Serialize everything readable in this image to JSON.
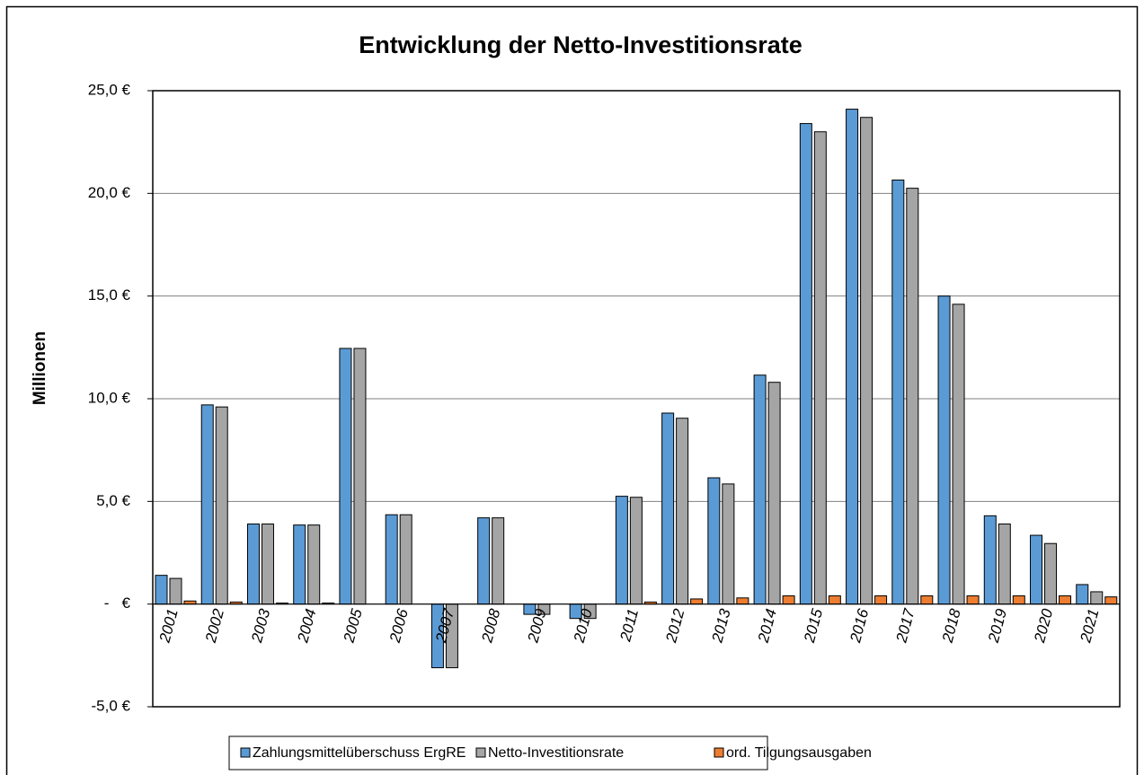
{
  "chart_data": {
    "type": "bar",
    "title": "Entwicklung der Netto-Investitionsrate",
    "y_label": "Millionen",
    "categories": [
      "2001",
      "2002",
      "2003",
      "2004",
      "2005",
      "2006",
      "2007",
      "2008",
      "2009",
      "2010",
      "2011",
      "2012",
      "2013",
      "2014",
      "2015",
      "2016",
      "2017",
      "2018",
      "2019",
      "2020",
      "2021"
    ],
    "series": [
      {
        "name": "Zahlungsmittelüberschuss ErgRE",
        "color": "#5b9bd5",
        "values": [
          1.4,
          9.7,
          3.9,
          3.85,
          12.45,
          4.35,
          -3.1,
          4.2,
          -0.5,
          -0.7,
          5.25,
          9.3,
          6.15,
          11.15,
          23.4,
          24.1,
          20.65,
          15.0,
          4.3,
          3.35,
          0.95
        ]
      },
      {
        "name": "Netto-Investitionsrate",
        "color": "#a5a5a5",
        "values": [
          1.25,
          9.6,
          3.9,
          3.85,
          12.45,
          4.35,
          -3.1,
          4.2,
          -0.5,
          -0.7,
          5.2,
          9.05,
          5.85,
          10.8,
          23.0,
          23.7,
          20.25,
          14.6,
          3.9,
          2.95,
          0.6
        ]
      },
      {
        "name": "ord. Tilgungsausgaben",
        "color": "#ed7d31",
        "values": [
          0.15,
          0.1,
          0.05,
          0.05,
          0,
          0,
          0,
          0,
          0,
          0,
          0.1,
          0.25,
          0.3,
          0.4,
          0.4,
          0.4,
          0.4,
          0.4,
          0.4,
          0.4,
          0.35
        ]
      }
    ],
    "ylim": [
      -5,
      25
    ],
    "yticks": [
      {
        "value": -5,
        "label": "-5,0 €"
      },
      {
        "value": 0,
        "label": "-   €"
      },
      {
        "value": 5,
        "label": "5,0 €"
      },
      {
        "value": 10,
        "label": "10,0 €"
      },
      {
        "value": 15,
        "label": "15,0 €"
      },
      {
        "value": 20,
        "label": "20,0 €"
      },
      {
        "value": 25,
        "label": "25,0 €"
      }
    ],
    "grid": true,
    "legend": "bottom"
  }
}
